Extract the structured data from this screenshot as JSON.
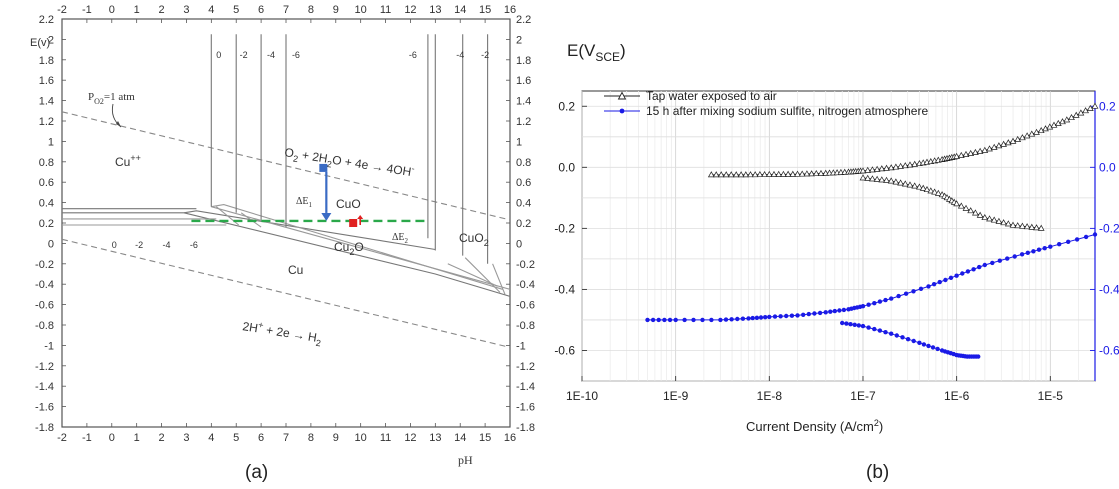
{
  "chart_data": [
    {
      "type": "diagram",
      "panel_label": "(a)",
      "xlabel": "pH",
      "ylabel": "E(v)",
      "xlim": [
        -2,
        16
      ],
      "ylim": [
        -1.8,
        2.2
      ],
      "x_ticks": [
        "-2",
        "-1",
        "0",
        "1",
        "2",
        "3",
        "4",
        "5",
        "6",
        "7",
        "8",
        "9",
        "10",
        "11",
        "12",
        "13",
        "14",
        "15",
        "16"
      ],
      "y_ticks": [
        "2.2",
        "2",
        "1.8",
        "1.6",
        "1.4",
        "1.2",
        "1",
        "0.8",
        "0.6",
        "0.4",
        "0.2",
        "0",
        "-0.2",
        "-0.4",
        "-0.6",
        "-0.8",
        "-1",
        "-1.2",
        "-1.4",
        "-1.6",
        "-1.8"
      ],
      "top_contour_labels": [
        {
          "x": 4.3,
          "text": "0"
        },
        {
          "x": 5.3,
          "text": "-2"
        },
        {
          "x": 6.4,
          "text": "-4"
        },
        {
          "x": 7.4,
          "text": "-6"
        },
        {
          "x": 12.1,
          "text": "-6"
        },
        {
          "x": 14.0,
          "text": "-4"
        },
        {
          "x": 15.0,
          "text": "-2"
        }
      ],
      "bottom_contour_labels": [
        {
          "x": 0.1,
          "text": "0"
        },
        {
          "x": 1.1,
          "text": "-2"
        },
        {
          "x": 2.2,
          "text": "-4"
        },
        {
          "x": 3.3,
          "text": "-6"
        }
      ],
      "regions": {
        "cu_plus": "Cu",
        "cu_plus_sup": "++",
        "cuo": "CuO",
        "cu2o_a": "Cu",
        "cu2o_sub": "2",
        "cu2o_b": "O",
        "cu": "Cu",
        "cuo2_a": "CuO",
        "cuo2_sub": "2"
      },
      "annotations": {
        "po2_a": "P",
        "po2_sub": "O2",
        "po2_b": "=1 atm",
        "o2_eq_a": "O",
        "o2_eq_sub": "2",
        "o2_eq_b": " + 2H",
        "o2_eq_sub2": "2",
        "o2_eq_c": "O + 4e → 4OH",
        "o2_eq_sup": "-",
        "h2_eq_a": "2H",
        "h2_eq_sup": "+",
        "h2_eq_b": " + 2e → H",
        "h2_eq_sub": "2",
        "de1_a": "ΔE",
        "de1_sub": "1",
        "de2_a": "ΔE",
        "de2_sub": "2"
      },
      "markers": {
        "start_point": {
          "x": 8.5,
          "y": 0.74,
          "color": "#3a6bc4"
        },
        "end_point": {
          "x": 9.7,
          "y": 0.2,
          "color": "#e02020"
        },
        "dashed_level": {
          "x_from": 3.2,
          "x_to": 12.6,
          "y": 0.22,
          "color": "#2aa84a"
        }
      }
    },
    {
      "type": "line",
      "panel_label": "(b)",
      "ylabel_a": "E(V",
      "ylabel_sub": "SCE",
      "ylabel_b": ")",
      "xlabel_a": "Current Density (A/cm",
      "xlabel_sup": "2",
      "xlabel_b": ")",
      "x_scale": "log",
      "xlim": [
        1e-10,
        3e-05
      ],
      "ylim": [
        -0.7,
        0.25
      ],
      "x_ticks": [
        "1E-10",
        "1E-9",
        "1E-8",
        "1E-7",
        "1E-6",
        "1E-5"
      ],
      "y_ticks_left": [
        "0.2",
        "0.0",
        "-0.2",
        "-0.4",
        "-0.6"
      ],
      "y_ticks_right": [
        "0.2",
        "0.0",
        "-0.2",
        "-0.4",
        "-0.6"
      ],
      "grid": true,
      "legend_position": "top-left",
      "series": [
        {
          "name": "Tap water exposed to air",
          "color": "#222222",
          "marker": "open-triangle",
          "x": [
            2.4e-09,
            5e-09,
            1e-08,
            2e-08,
            4e-08,
            7e-08,
            1e-07,
            2e-07,
            4e-07,
            7e-07,
            1e-06,
            2e-06,
            4e-06,
            8e-06,
            1.5e-05,
            3e-05
          ],
          "y": [
            -0.025,
            -0.025,
            -0.024,
            -0.023,
            -0.02,
            -0.016,
            -0.012,
            -0.002,
            0.012,
            0.025,
            0.035,
            0.055,
            0.085,
            0.12,
            0.155,
            0.2
          ],
          "x2": [
            1e-07,
            2e-07,
            4e-07,
            7e-07,
            1e-06,
            2e-06,
            4e-06,
            8e-06
          ],
          "y2": [
            -0.035,
            -0.045,
            -0.065,
            -0.09,
            -0.12,
            -0.165,
            -0.19,
            -0.2
          ]
        },
        {
          "name": "15 h after mixing sodium sulfite, nitrogen atmosphere",
          "color": "#1a1ae6",
          "marker": "filled-circle",
          "x": [
            5e-10,
            1e-09,
            3e-09,
            6e-09,
            1e-08,
            2e-08,
            4e-08,
            7e-08,
            1e-07,
            2e-07,
            5e-07,
            1e-06,
            2e-06,
            5e-06,
            1e-05,
            3e-05
          ],
          "y": [
            -0.5,
            -0.5,
            -0.5,
            -0.495,
            -0.49,
            -0.485,
            -0.475,
            -0.465,
            -0.455,
            -0.43,
            -0.39,
            -0.355,
            -0.32,
            -0.285,
            -0.26,
            -0.22
          ],
          "x2": [
            6e-08,
            1e-07,
            2e-07,
            4e-07,
            7e-07,
            1e-06,
            1.3e-06,
            1.7e-06
          ],
          "y2": [
            -0.51,
            -0.52,
            -0.545,
            -0.575,
            -0.6,
            -0.615,
            -0.62,
            -0.62
          ]
        }
      ]
    }
  ]
}
